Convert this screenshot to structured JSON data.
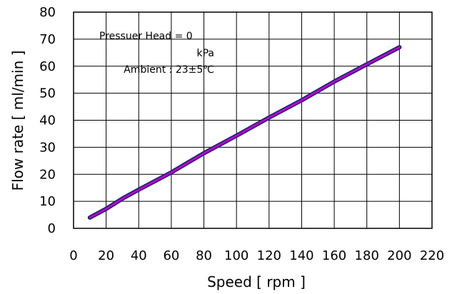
{
  "chart_data": {
    "type": "line",
    "title": "",
    "xlabel": "Speed [ rpm ]",
    "ylabel": "Flow rate [ ml/min ]",
    "xlim": [
      0,
      220
    ],
    "ylim": [
      0,
      80
    ],
    "x_ticks": [
      0,
      20,
      40,
      60,
      80,
      100,
      120,
      140,
      160,
      180,
      200,
      220
    ],
    "y_ticks": [
      0,
      10,
      20,
      30,
      40,
      50,
      60,
      70,
      80
    ],
    "grid": true,
    "annotations": [
      "Pressuer Head = 0",
      "kPa",
      "Ambient : 23±5℃"
    ],
    "series": [
      {
        "color": "#cc00cc",
        "outline_color": "#1a237e",
        "x": [
          10,
          20,
          30,
          40,
          60,
          80,
          100,
          120,
          140,
          160,
          180,
          200
        ],
        "y": [
          4,
          7.2,
          11,
          14.3,
          20.7,
          27.8,
          34.3,
          41,
          47.4,
          54.3,
          60.7,
          67
        ]
      }
    ]
  }
}
